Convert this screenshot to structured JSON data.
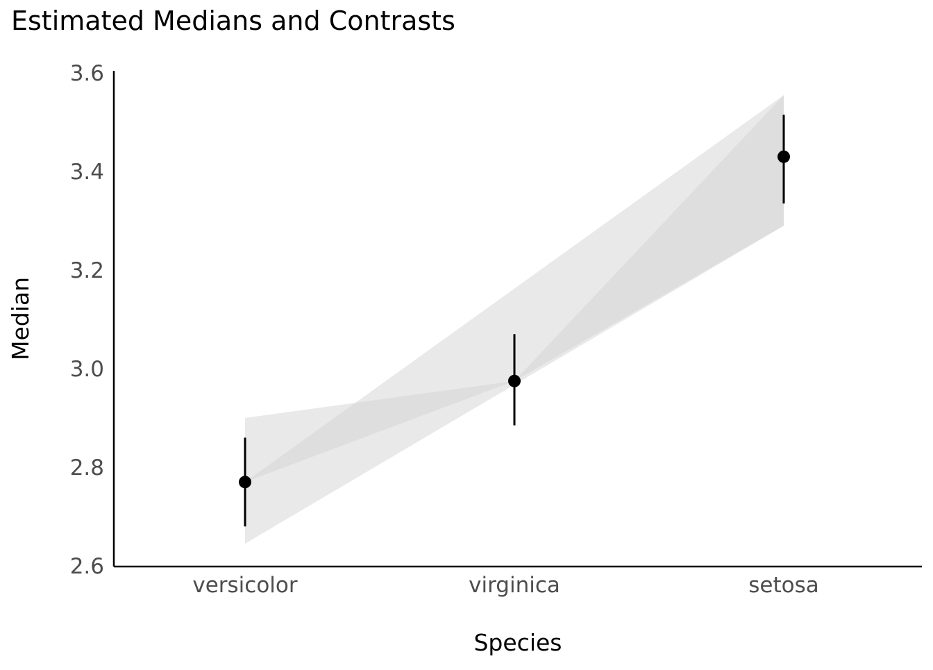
{
  "chart_data": {
    "type": "scatter",
    "title": "Estimated Medians and Contrasts",
    "xlabel": "Species",
    "ylabel": "Median",
    "categories": [
      "versicolor",
      "virginica",
      "setosa"
    ],
    "ylim": [
      2.6,
      3.6
    ],
    "yticks": [
      2.6,
      2.8,
      3.0,
      3.2,
      3.4,
      3.6
    ],
    "ytick_labels": [
      "2.6",
      "2.8",
      "3.0",
      "3.2",
      "3.4",
      "3.6"
    ],
    "grid": false,
    "points": [
      {
        "category": "versicolor",
        "median": 2.77,
        "lower": 2.68,
        "upper": 2.86
      },
      {
        "category": "virginica",
        "median": 2.975,
        "lower": 2.885,
        "upper": 3.07
      },
      {
        "category": "setosa",
        "median": 3.43,
        "lower": 3.335,
        "upper": 3.515
      }
    ],
    "contrasts": [
      {
        "from": "versicolor",
        "to": "virginica",
        "from_lower": 2.77,
        "from_upper": 2.9,
        "to_lower": 2.975,
        "to_upper": 2.975
      },
      {
        "from": "versicolor",
        "to": "setosa",
        "from_lower": 2.77,
        "from_upper": 2.77,
        "to_lower": 3.3,
        "to_upper": 3.555
      },
      {
        "from": "virginica",
        "to": "setosa",
        "from_lower": 2.975,
        "from_upper": 2.975,
        "to_lower": 3.29,
        "to_upper": 3.555
      },
      {
        "from": "versicolor",
        "to": "setosa",
        "from_lower": 2.645,
        "from_upper": 2.77,
        "to_lower": 3.29,
        "to_upper": 3.3
      }
    ],
    "colors": {
      "point": "#000000",
      "band": "#d3d3d3",
      "axis": "#000000",
      "tick_label": "#4d4d4d"
    }
  }
}
